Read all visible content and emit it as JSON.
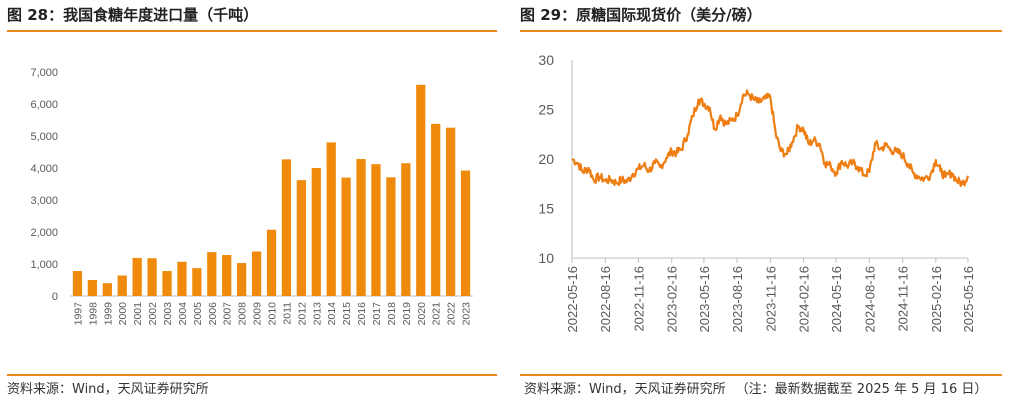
{
  "left": {
    "title": "图 28：我国食糖年度进口量（千吨）",
    "source": "资料来源：Wind，天风证券研究所"
  },
  "right": {
    "title": "图 29：原糖国际现货价（美分/磅）",
    "source": "资料来源：Wind，天风证券研究所",
    "note": "（注：最新数据截至 2025 年 5 月 16 日）"
  },
  "colors": {
    "accent": "#e8891a",
    "bar": "#f08a0c",
    "line": "#ee7d12",
    "axis": "#bfbfbf"
  },
  "chart_data": [
    {
      "type": "bar",
      "title": "我国食糖年度进口量（千吨）",
      "categories": [
        "1997",
        "1998",
        "1999",
        "2000",
        "2001",
        "2002",
        "2003",
        "2004",
        "2005",
        "2006",
        "2007",
        "2008",
        "2009",
        "2010",
        "2011",
        "2012",
        "2013",
        "2014",
        "2015",
        "2016",
        "2017",
        "2018",
        "2019",
        "2020",
        "2021",
        "2022",
        "2023"
      ],
      "values": [
        780,
        500,
        400,
        640,
        1190,
        1180,
        780,
        1070,
        870,
        1370,
        1280,
        1030,
        1390,
        2070,
        4270,
        3620,
        4000,
        4800,
        3700,
        4280,
        4120,
        3710,
        4150,
        6600,
        5380,
        5260,
        3920
      ],
      "ylim": [
        0,
        7000
      ],
      "yticks": [
        0,
        1000,
        2000,
        3000,
        4000,
        5000,
        6000,
        7000
      ],
      "ytick_labels": [
        "0",
        "1,000",
        "2,000",
        "3,000",
        "4,000",
        "5,000",
        "6,000",
        "7,000"
      ],
      "xlabel": "",
      "ylabel": ""
    },
    {
      "type": "line",
      "title": "原糖国际现货价（美分/磅）",
      "ylim": [
        10,
        30
      ],
      "yticks": [
        10,
        15,
        20,
        25,
        30
      ],
      "xlim": [
        "2022-05-16",
        "2025-05-16"
      ],
      "xtick_labels": [
        "2022-05-16",
        "2022-08-16",
        "2022-11-16",
        "2023-02-16",
        "2023-05-16",
        "2023-08-16",
        "2023-11-16",
        "2024-02-16",
        "2024-05-16",
        "2024-08-16",
        "2024-11-16",
        "2025-02-16",
        "2025-05-16"
      ],
      "series": [
        {
          "name": "原糖现货价",
          "x": [
            "2022-05-16",
            "2022-06-01",
            "2022-06-15",
            "2022-07-01",
            "2022-07-15",
            "2022-08-01",
            "2022-08-16",
            "2022-09-01",
            "2022-09-15",
            "2022-10-01",
            "2022-10-15",
            "2022-11-01",
            "2022-11-16",
            "2022-12-01",
            "2022-12-15",
            "2023-01-01",
            "2023-01-15",
            "2023-02-01",
            "2023-02-16",
            "2023-03-01",
            "2023-03-15",
            "2023-04-01",
            "2023-04-15",
            "2023-05-01",
            "2023-05-16",
            "2023-06-01",
            "2023-06-15",
            "2023-07-01",
            "2023-07-15",
            "2023-08-01",
            "2023-08-16",
            "2023-09-01",
            "2023-09-15",
            "2023-10-01",
            "2023-10-15",
            "2023-11-01",
            "2023-11-16",
            "2023-12-01",
            "2023-12-15",
            "2024-01-01",
            "2024-01-15",
            "2024-02-01",
            "2024-02-16",
            "2024-03-01",
            "2024-03-15",
            "2024-04-01",
            "2024-04-15",
            "2024-05-01",
            "2024-05-16",
            "2024-06-01",
            "2024-06-15",
            "2024-07-01",
            "2024-07-15",
            "2024-08-01",
            "2024-08-16",
            "2024-09-01",
            "2024-09-15",
            "2024-10-01",
            "2024-10-15",
            "2024-11-01",
            "2024-11-16",
            "2024-12-01",
            "2024-12-15",
            "2025-01-01",
            "2025-01-15",
            "2025-02-01",
            "2025-02-16",
            "2025-03-01",
            "2025-03-15",
            "2025-04-01",
            "2025-04-15",
            "2025-05-01",
            "2025-05-16"
          ],
          "values": [
            20.0,
            19.6,
            18.7,
            19.1,
            17.9,
            18.2,
            17.8,
            17.9,
            17.6,
            17.9,
            17.7,
            18.5,
            19.0,
            19.4,
            18.8,
            19.6,
            19.2,
            20.1,
            20.8,
            20.6,
            21.0,
            22.5,
            24.3,
            26.0,
            25.6,
            25.2,
            23.0,
            24.4,
            23.5,
            23.9,
            24.4,
            26.4,
            26.6,
            26.0,
            25.7,
            26.1,
            26.2,
            22.5,
            20.8,
            20.5,
            21.7,
            23.3,
            23.0,
            21.5,
            21.9,
            21.5,
            19.6,
            19.3,
            18.6,
            19.8,
            19.3,
            19.6,
            19.2,
            18.4,
            18.7,
            21.6,
            21.0,
            21.4,
            20.9,
            20.7,
            20.4,
            19.5,
            18.6,
            18.2,
            18.0,
            18.4,
            19.9,
            18.8,
            18.2,
            18.6,
            17.8,
            17.5,
            18.3
          ]
        }
      ],
      "xlabel": "",
      "ylabel": ""
    }
  ]
}
